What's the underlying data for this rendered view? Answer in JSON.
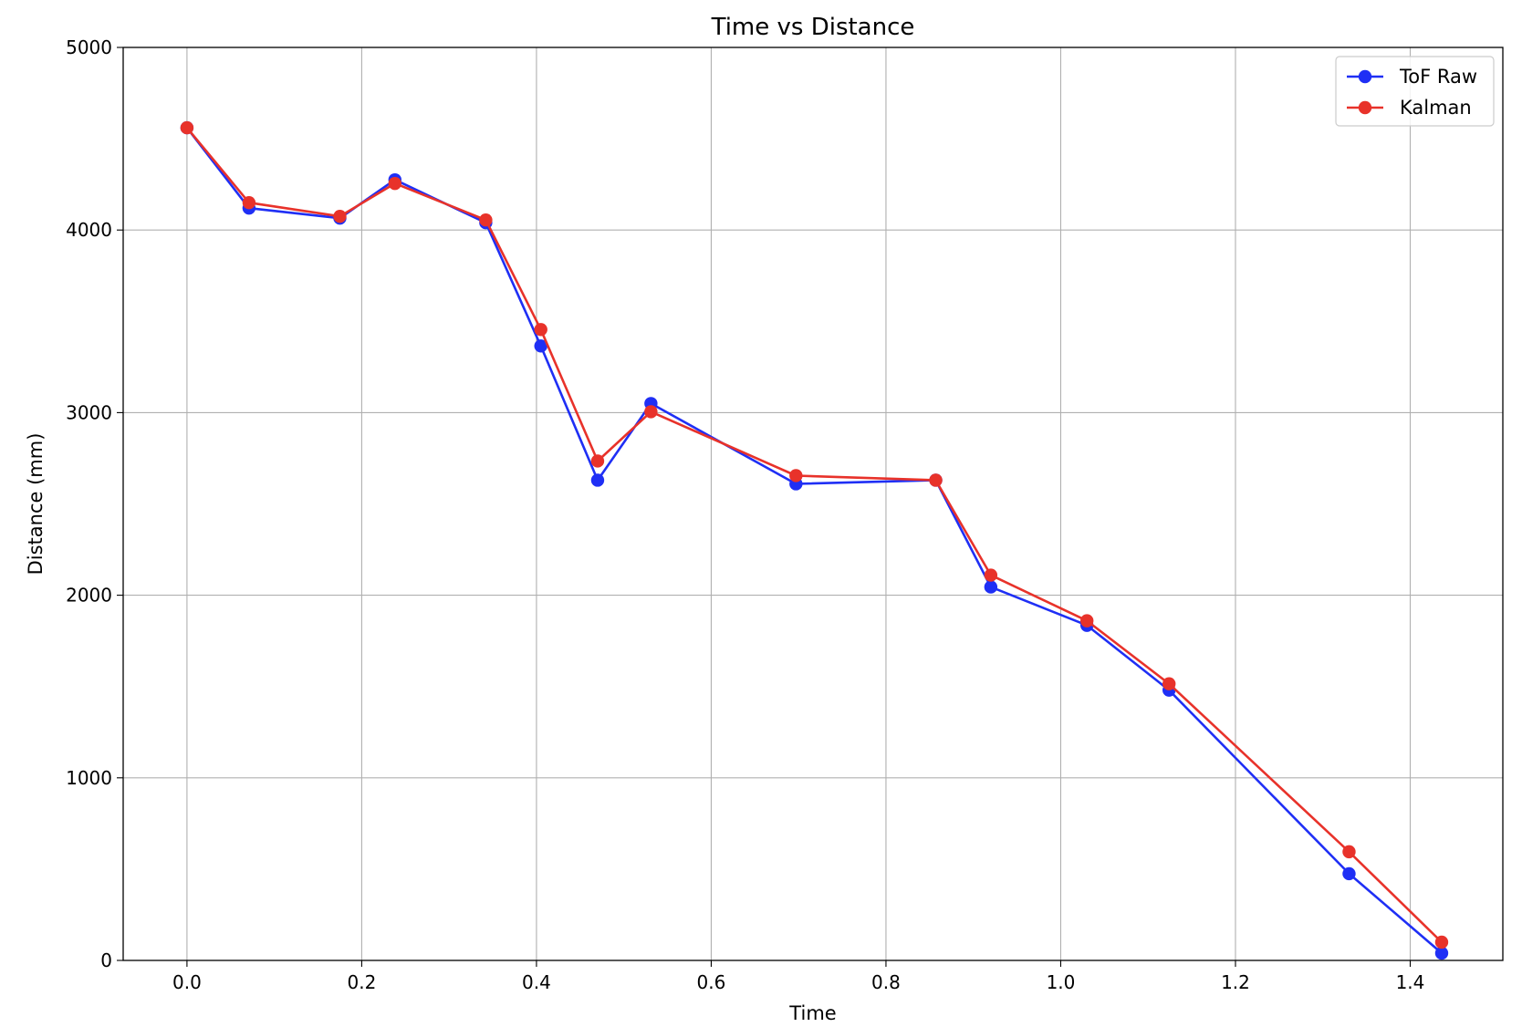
{
  "chart_data": {
    "type": "line",
    "title": "Time vs Distance",
    "xlabel": "Time",
    "ylabel": "Distance (mm)",
    "xlim": [
      -0.073,
      1.506
    ],
    "ylim": [
      0,
      5000
    ],
    "xticks": [
      "0.0",
      "0.2",
      "0.4",
      "0.6",
      "0.8",
      "1.0",
      "1.2",
      "1.4"
    ],
    "yticks": [
      "0",
      "1000",
      "2000",
      "3000",
      "4000",
      "5000"
    ],
    "grid": true,
    "legend_position": "top-right",
    "series": [
      {
        "name": "ToF Raw",
        "color": "#1f2ff5",
        "x": [
          0.0,
          0.071,
          0.175,
          0.238,
          0.342,
          0.405,
          0.47,
          0.531,
          0.697,
          0.857,
          0.92,
          1.03,
          1.124,
          1.33,
          1.436
        ],
        "y": [
          4560,
          4120,
          4065,
          4275,
          4040,
          3365,
          2630,
          3050,
          2610,
          2630,
          2045,
          1835,
          1480,
          475,
          40
        ]
      },
      {
        "name": "Kalman",
        "color": "#e8322a",
        "x": [
          0.0,
          0.071,
          0.175,
          0.238,
          0.342,
          0.405,
          0.47,
          0.531,
          0.697,
          0.857,
          0.92,
          1.03,
          1.124,
          1.33,
          1.436
        ],
        "y": [
          4560,
          4150,
          4075,
          4255,
          4055,
          3455,
          2735,
          3005,
          2655,
          2630,
          2110,
          1860,
          1515,
          595,
          100
        ]
      }
    ]
  }
}
